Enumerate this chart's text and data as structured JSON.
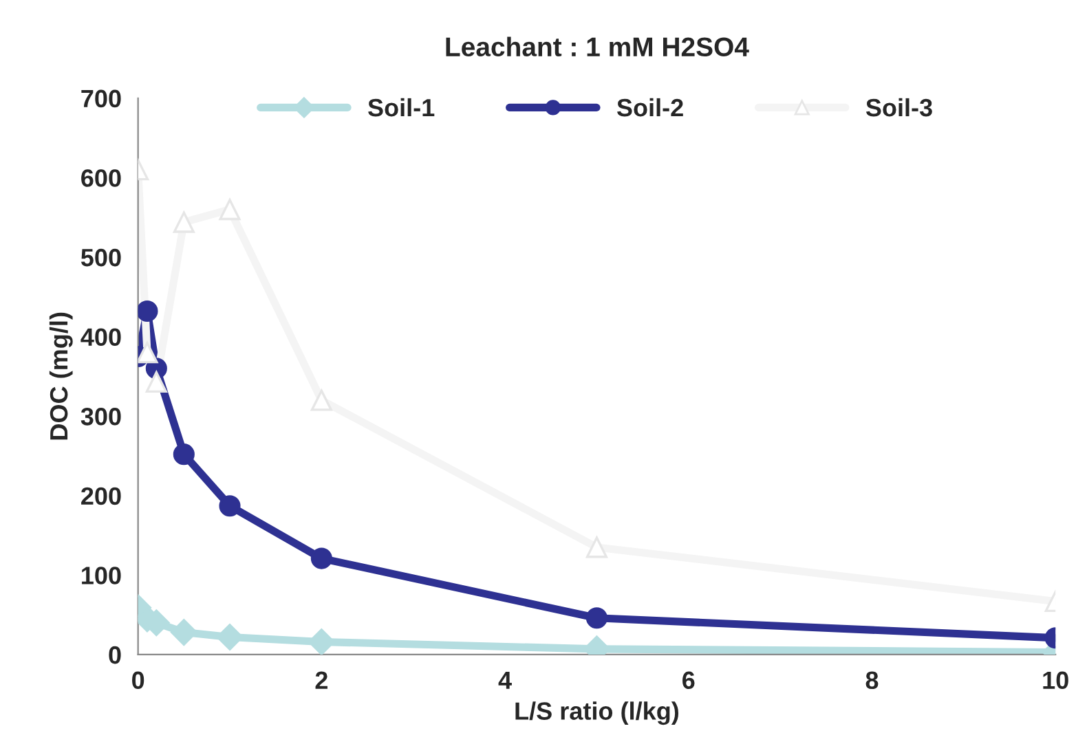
{
  "chart_data": {
    "type": "line",
    "title": "Leachant : 1 mM H2SO4",
    "xlabel": "L/S ratio (l/kg)",
    "ylabel": "DOC (mg/l)",
    "x": [
      0,
      0.1,
      0.2,
      0.5,
      1,
      2,
      5,
      10
    ],
    "series": [
      {
        "name": "Soil-1",
        "color": "#b4dde0",
        "marker": "diamond",
        "values": [
          59,
          45,
          40,
          28,
          22,
          16,
          7,
          3
        ]
      },
      {
        "name": "Soil-2",
        "color": "#2e3192",
        "marker": "circle",
        "values": [
          375,
          432,
          360,
          252,
          187,
          121,
          46,
          21
        ]
      },
      {
        "name": "Soil-3",
        "color": "#f4f4f4",
        "marker": "triangle",
        "values": [
          610,
          380,
          343,
          544,
          560,
          320,
          135,
          67
        ]
      }
    ],
    "xlim": [
      0,
      10
    ],
    "xticks": [
      0,
      2,
      4,
      6,
      8,
      10
    ],
    "ylim": [
      0,
      700
    ],
    "yticks": [
      0,
      100,
      200,
      300,
      400,
      500,
      600,
      700
    ],
    "grid": false,
    "legend": "top",
    "line_style": "solid"
  }
}
